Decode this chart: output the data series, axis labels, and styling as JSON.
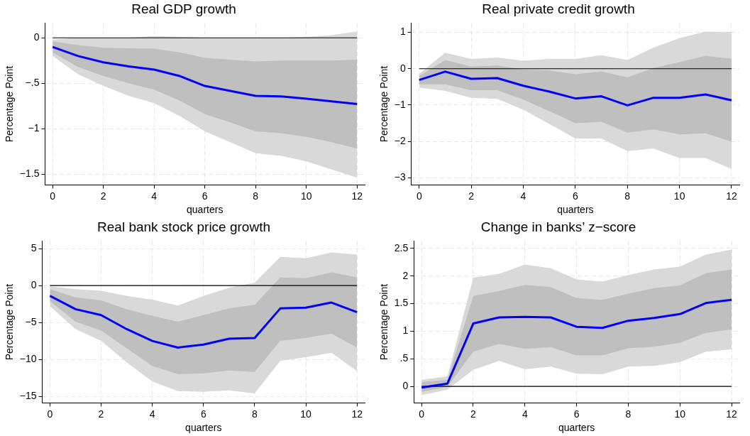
{
  "chart_data": [
    {
      "type": "line",
      "title": "Real GDP growth",
      "xlabel": "quarters",
      "ylabel": "Percentage Point",
      "x": [
        0,
        1,
        2,
        3,
        4,
        5,
        6,
        7,
        8,
        9,
        10,
        11,
        12
      ],
      "series": [
        {
          "type": "area",
          "color": "#d9d9d9",
          "values": [
            null,
            null,
            null,
            null,
            null,
            null,
            null,
            null,
            null,
            null,
            null,
            null,
            null
          ],
          "lower": [
            -0.2,
            -0.4,
            -0.53,
            -0.64,
            -0.72,
            -0.86,
            -1.03,
            -1.15,
            -1.27,
            -1.3,
            -1.36,
            -1.45,
            -1.54
          ],
          "upper": [
            -0.02,
            0,
            0,
            0,
            0.02,
            0.01,
            0,
            0,
            0,
            0,
            0.01,
            0.03,
            0.07
          ]
        },
        {
          "type": "area",
          "color": "#bfbfbf",
          "values": [
            null,
            null,
            null,
            null,
            null,
            null,
            null,
            null,
            null,
            null,
            null,
            null,
            null
          ],
          "lower": [
            -0.16,
            -0.32,
            -0.42,
            -0.5,
            -0.57,
            -0.69,
            -0.84,
            -0.93,
            -1.03,
            -1.05,
            -1.09,
            -1.15,
            -1.22
          ],
          "upper": [
            -0.04,
            -0.08,
            -0.11,
            -0.115,
            -0.12,
            -0.16,
            -0.22,
            -0.24,
            -0.26,
            -0.25,
            -0.25,
            -0.25,
            -0.24
          ]
        },
        {
          "type": "line",
          "color": "#0000ff",
          "values": [
            -0.1,
            -0.2,
            -0.27,
            -0.315,
            -0.35,
            -0.42,
            -0.53,
            -0.585,
            -0.64,
            -0.645,
            -0.67,
            -0.7,
            -0.73
          ]
        }
      ],
      "ref_lines": [
        {
          "axis": "y",
          "value": 0,
          "color": "#000000"
        }
      ],
      "xlim": [
        -0.3,
        12.3
      ],
      "xticks": [
        0,
        2,
        4,
        6,
        8,
        10,
        12
      ],
      "ylim": [
        -1.62,
        0.16
      ],
      "yticks": [
        {
          "value": -1.5,
          "label": "−1.5"
        },
        {
          "value": -1,
          "label": "−1"
        },
        {
          "value": -0.5,
          "label": "−.5"
        },
        0
      ],
      "grid": true,
      "legend": false
    },
    {
      "type": "line",
      "title": "Real private credit growth",
      "xlabel": "quarters",
      "ylabel": "Percentage Point",
      "x": [
        0,
        1,
        2,
        3,
        4,
        5,
        6,
        7,
        8,
        9,
        10,
        11,
        12
      ],
      "series": [
        {
          "type": "area",
          "color": "#d9d9d9",
          "values": [
            null,
            null,
            null,
            null,
            null,
            null,
            null,
            null,
            null,
            null,
            null,
            null,
            null
          ],
          "lower": [
            -0.52,
            -0.61,
            -0.8,
            -0.83,
            -1.13,
            -1.52,
            -1.92,
            -1.92,
            -2.27,
            -2.2,
            -2.46,
            -2.46,
            -2.76
          ],
          "upper": [
            -0.14,
            0.44,
            0.27,
            0.31,
            0.22,
            0.27,
            0.27,
            0.37,
            0.24,
            0.58,
            0.84,
            1.02,
            1.01
          ]
        },
        {
          "type": "area",
          "color": "#bfbfbf",
          "values": [
            null,
            null,
            null,
            null,
            null,
            null,
            null,
            null,
            null,
            null,
            null,
            null,
            null
          ],
          "lower": [
            -0.43,
            -0.43,
            -0.59,
            -0.59,
            -0.85,
            -1.17,
            -1.5,
            -1.46,
            -1.76,
            -1.67,
            -1.81,
            -1.78,
            -2.01
          ],
          "upper": [
            -0.2,
            0.24,
            0.06,
            0.09,
            -0.02,
            -0.05,
            -0.15,
            -0.08,
            -0.24,
            0.02,
            0.18,
            0.35,
            0.28
          ]
        },
        {
          "type": "line",
          "color": "#0000ff",
          "values": [
            -0.31,
            -0.08,
            -0.28,
            -0.26,
            -0.47,
            -0.63,
            -0.82,
            -0.76,
            -1.01,
            -0.8,
            -0.8,
            -0.71,
            -0.87
          ]
        }
      ],
      "ref_lines": [
        {
          "axis": "y",
          "value": 0,
          "color": "#000000"
        }
      ],
      "xlim": [
        -0.3,
        12.3
      ],
      "xticks": [
        0,
        2,
        4,
        6,
        8,
        10,
        12
      ],
      "ylim": [
        -3.2,
        1.25
      ],
      "yticks": [
        {
          "value": -3,
          "label": "−3"
        },
        {
          "value": -2,
          "label": "−2"
        },
        {
          "value": -1,
          "label": "−1"
        },
        0,
        1
      ],
      "grid": true,
      "legend": false
    },
    {
      "type": "line",
      "title": "Real bank stock price growth",
      "xlabel": "quarters",
      "ylabel": "Percentage Point",
      "x": [
        0,
        1,
        2,
        3,
        4,
        5,
        6,
        7,
        8,
        9,
        10,
        11,
        12
      ],
      "series": [
        {
          "type": "area",
          "color": "#d9d9d9",
          "values": [
            null,
            null,
            null,
            null,
            null,
            null,
            null,
            null,
            null,
            null,
            null,
            null,
            null
          ],
          "lower": [
            -2.8,
            -5.9,
            -7.5,
            -10.4,
            -13,
            -14.3,
            -14.4,
            -14.2,
            -14.6,
            -10.2,
            -9.7,
            -9.1,
            -11.6
          ],
          "upper": [
            -0.1,
            -0.5,
            -0.7,
            -1.4,
            -1.9,
            -2.7,
            -1.4,
            -0.3,
            0.4,
            3.9,
            3.7,
            4.5,
            4.2
          ]
        },
        {
          "type": "area",
          "color": "#bfbfbf",
          "values": [
            null,
            null,
            null,
            null,
            null,
            null,
            null,
            null,
            null,
            null,
            null,
            null,
            null
          ],
          "lower": [
            -2.1,
            -4.9,
            -6.1,
            -8.5,
            -10.9,
            -12,
            -11.9,
            -11.5,
            -11.7,
            -7.5,
            -7.1,
            -6.5,
            -8.4
          ],
          "upper": [
            -0.5,
            -1.6,
            -2,
            -3.2,
            -4.1,
            -4.9,
            -4,
            -3.1,
            -2.6,
            1.1,
            1,
            1.8,
            1.1
          ]
        },
        {
          "type": "line",
          "color": "#0000ff",
          "values": [
            -1.4,
            -3.2,
            -4,
            -5.9,
            -7.5,
            -8.4,
            -8,
            -7.2,
            -7.1,
            -3.1,
            -3,
            -2.3,
            -3.6
          ]
        }
      ],
      "ref_lines": [
        {
          "axis": "y",
          "value": 0,
          "color": "#000000"
        }
      ],
      "xlim": [
        -0.3,
        12.3
      ],
      "xticks": [
        0,
        2,
        4,
        6,
        8,
        10,
        12
      ],
      "ylim": [
        -15.9,
        6
      ],
      "yticks": [
        {
          "value": -15,
          "label": "−15"
        },
        {
          "value": -10,
          "label": "−10"
        },
        {
          "value": -5,
          "label": "−5"
        },
        0,
        5
      ],
      "grid": true,
      "legend": false
    },
    {
      "type": "line",
      "title": "Change in banks’ z−score",
      "xlabel": "quarters",
      "ylabel": "Percentage Point",
      "x": [
        0,
        1,
        2,
        3,
        4,
        5,
        6,
        7,
        8,
        9,
        10,
        11,
        12
      ],
      "series": [
        {
          "type": "area",
          "color": "#d9d9d9",
          "values": [
            null,
            null,
            null,
            null,
            null,
            null,
            null,
            null,
            null,
            null,
            null,
            null,
            null
          ],
          "lower": [
            -0.16,
            -0.06,
            0.3,
            0.46,
            0.31,
            0.36,
            0.23,
            0.22,
            0.36,
            0.37,
            0.44,
            0.63,
            0.67
          ],
          "upper": [
            0.12,
            0.18,
            1.97,
            2.04,
            2.21,
            2.14,
            1.94,
            1.9,
            2.02,
            2.12,
            2.17,
            2.39,
            2.48
          ]
        },
        {
          "type": "area",
          "color": "#bfbfbf",
          "values": [
            null,
            null,
            null,
            null,
            null,
            null,
            null,
            null,
            null,
            null,
            null,
            null,
            null
          ],
          "lower": [
            -0.1,
            -0.01,
            0.63,
            0.77,
            0.68,
            0.71,
            0.56,
            0.56,
            0.69,
            0.72,
            0.79,
            0.97,
            1.03
          ],
          "upper": [
            0.08,
            0.12,
            1.64,
            1.73,
            1.84,
            1.8,
            1.6,
            1.57,
            1.68,
            1.78,
            1.83,
            2.05,
            2.12
          ]
        },
        {
          "type": "line",
          "color": "#0000ff",
          "values": [
            -0.02,
            0.05,
            1.14,
            1.25,
            1.26,
            1.25,
            1.08,
            1.06,
            1.19,
            1.24,
            1.31,
            1.51,
            1.57
          ]
        }
      ],
      "ref_lines": [
        {
          "axis": "y",
          "value": 0,
          "color": "#000000"
        }
      ],
      "xlim": [
        -0.3,
        12.3
      ],
      "xticks": [
        0,
        2,
        4,
        6,
        8,
        10,
        12
      ],
      "ylim": [
        -0.3,
        2.63
      ],
      "yticks": [
        0,
        {
          "value": 0.5,
          "label": ".5"
        },
        1,
        1.5,
        2,
        2.5
      ],
      "grid": true,
      "legend": false
    }
  ]
}
